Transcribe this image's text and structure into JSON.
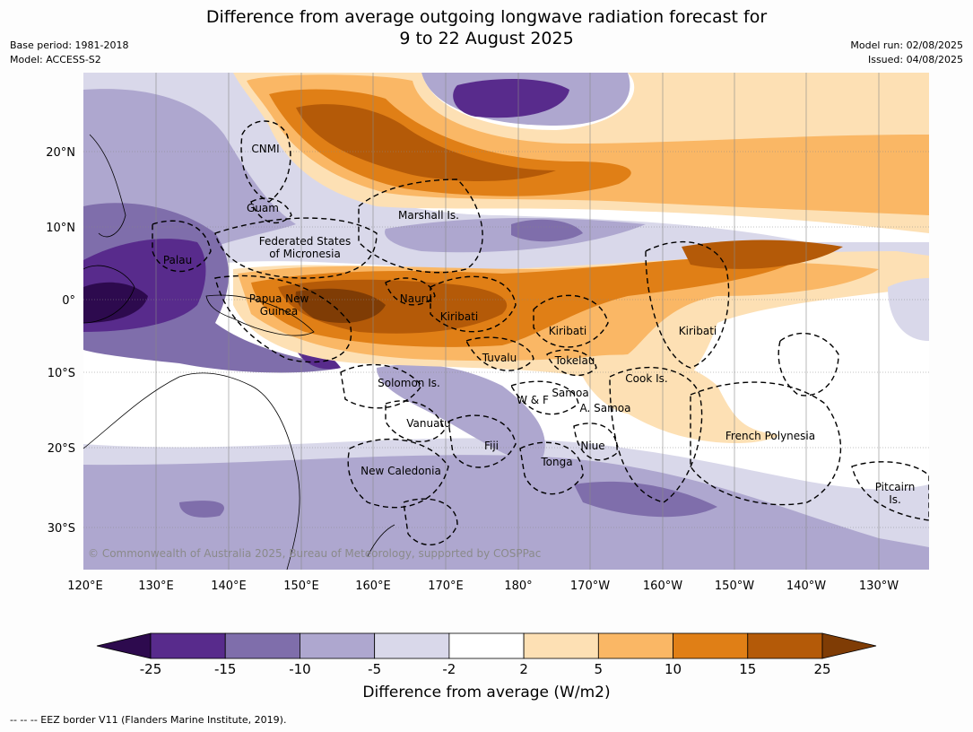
{
  "title_line1": "Difference from average outgoing longwave radiation forecast for",
  "title_line2": "9 to 22 August 2025",
  "meta": {
    "base_period": "Base period: 1981-2018",
    "model": "Model: ACCESS-S2",
    "model_run": "Model run: 02/08/2025",
    "issued": "Issued: 04/08/2025"
  },
  "map": {
    "lon_ticks": [
      "120°E",
      "130°E",
      "140°E",
      "150°E",
      "160°E",
      "170°E",
      "180°",
      "170°W",
      "160°W",
      "150°W",
      "140°W",
      "130°W"
    ],
    "lat_ticks": [
      "20°N",
      "10°N",
      "0°",
      "10°S",
      "20°S",
      "30°S"
    ],
    "places": [
      "CNMI",
      "Guam",
      "Marshall Is.",
      "Federated States",
      "of Micronesia",
      "Palau",
      "Papua New",
      "Guinea",
      "Nauru",
      "Kiribati",
      "Kiribati",
      "Kiribati",
      "Tuvalu",
      "Tokelau",
      "Solomon Is.",
      "Cook Is.",
      "Samoa",
      "W & F",
      "A. Samoa",
      "Vanuatu",
      "Fiji",
      "Niue",
      "Tonga",
      "French Polynesia",
      "New Caledonia",
      "Pitcairn",
      "Is."
    ],
    "copyright": "© Commonwealth of Australia 2025, Bureau of Meteorology, supported by COSPPac"
  },
  "colorbar": {
    "ticks": [
      "-25",
      "-15",
      "-10",
      "-5",
      "-2",
      "2",
      "5",
      "10",
      "15",
      "25"
    ],
    "colors": [
      "#2d0a4e",
      "#582b8c",
      "#7f6eab",
      "#aea7cf",
      "#d9d8ea",
      "#ffffff",
      "#fde0b4",
      "#fab765",
      "#e07f16",
      "#b45a08",
      "#7f3c05"
    ],
    "label": "Difference from average (W/m2)"
  },
  "footnote": "--  --  -- EEZ border V11 (Flanders Marine Institute, 2019)."
}
